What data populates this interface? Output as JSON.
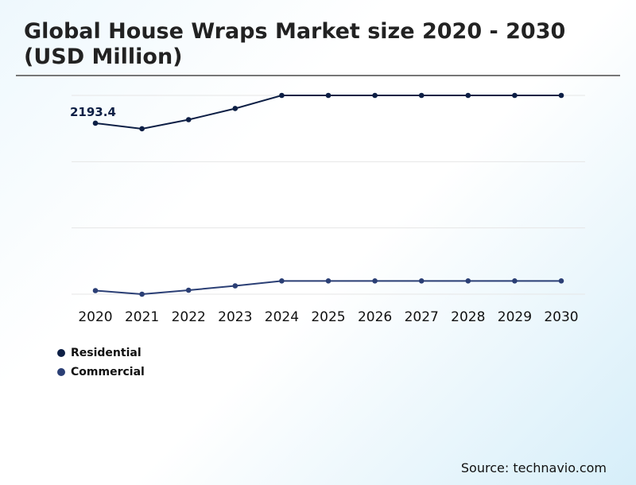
{
  "chart_data": {
    "type": "line",
    "title": "Global House Wraps Market size 2020 - 2030 (USD Million)",
    "categories": [
      "2020",
      "2021",
      "2022",
      "2023",
      "2024",
      "2025",
      "2026",
      "2027",
      "2028",
      "2029",
      "2030"
    ],
    "series": [
      {
        "name": "Residential",
        "color": "#0d1f45",
        "values": [
          2193.4,
          2122,
          2239,
          2382,
          2550,
          2550,
          2550,
          2550,
          2550,
          2550,
          2550
        ]
      },
      {
        "name": "Commercial",
        "color": "#2b3f75",
        "values": [
          46,
          0,
          51,
          107,
          170,
          170,
          170,
          170,
          170,
          170,
          170
        ]
      }
    ],
    "annotations": [
      {
        "series": "Residential",
        "category": "2020",
        "text": "2193.4"
      }
    ],
    "ylim": [
      0,
      2550
    ],
    "grid": true,
    "y_axis_labels_shown": false,
    "legend_position": "bottom-left"
  },
  "source": "Source: technavio.com"
}
